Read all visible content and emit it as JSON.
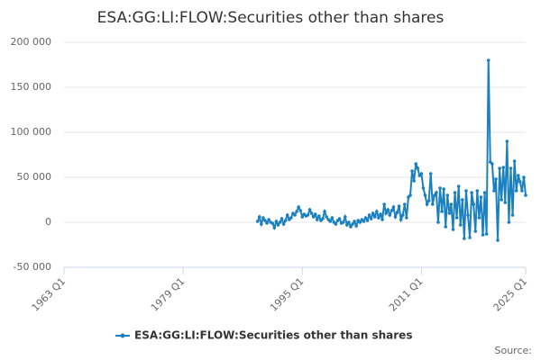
{
  "chart_data": {
    "type": "line",
    "title": "ESA:GG:LI:FLOW:Securities other than shares",
    "x": [
      "1989 Q1",
      "1989 Q2",
      "1989 Q3",
      "1989 Q4",
      "1990 Q1",
      "1990 Q2",
      "1990 Q3",
      "1990 Q4",
      "1991 Q1",
      "1991 Q2",
      "1991 Q3",
      "1991 Q4",
      "1992 Q1",
      "1992 Q2",
      "1992 Q3",
      "1992 Q4",
      "1993 Q1",
      "1993 Q2",
      "1993 Q3",
      "1993 Q4",
      "1994 Q1",
      "1994 Q2",
      "1994 Q3",
      "1994 Q4",
      "1995 Q1",
      "1995 Q2",
      "1995 Q3",
      "1995 Q4",
      "1996 Q1",
      "1996 Q2",
      "1996 Q3",
      "1996 Q4",
      "1997 Q1",
      "1997 Q2",
      "1997 Q3",
      "1997 Q4",
      "1998 Q1",
      "1998 Q2",
      "1998 Q3",
      "1998 Q4",
      "1999 Q1",
      "1999 Q2",
      "1999 Q3",
      "1999 Q4",
      "2000 Q1",
      "2000 Q2",
      "2000 Q3",
      "2000 Q4",
      "2001 Q1",
      "2001 Q2",
      "2001 Q3",
      "2001 Q4",
      "2002 Q1",
      "2002 Q2",
      "2002 Q3",
      "2002 Q4",
      "2003 Q1",
      "2003 Q2",
      "2003 Q3",
      "2003 Q4",
      "2004 Q1",
      "2004 Q2",
      "2004 Q3",
      "2004 Q4",
      "2005 Q1",
      "2005 Q2",
      "2005 Q3",
      "2005 Q4",
      "2006 Q1",
      "2006 Q2",
      "2006 Q3",
      "2006 Q4",
      "2007 Q1",
      "2007 Q2",
      "2007 Q3",
      "2007 Q4",
      "2008 Q1",
      "2008 Q2",
      "2008 Q3",
      "2008 Q4",
      "2009 Q1",
      "2009 Q2",
      "2009 Q3",
      "2009 Q4",
      "2010 Q1",
      "2010 Q2",
      "2010 Q3",
      "2010 Q4",
      "2011 Q1",
      "2011 Q2",
      "2011 Q3",
      "2011 Q4",
      "2012 Q1",
      "2012 Q2",
      "2012 Q3",
      "2012 Q4",
      "2013 Q1",
      "2013 Q2",
      "2013 Q3",
      "2013 Q4",
      "2014 Q1",
      "2014 Q2",
      "2014 Q3",
      "2014 Q4",
      "2015 Q1",
      "2015 Q2",
      "2015 Q3",
      "2015 Q4",
      "2016 Q1",
      "2016 Q2",
      "2016 Q3",
      "2016 Q4",
      "2017 Q1",
      "2017 Q2",
      "2017 Q3",
      "2017 Q4",
      "2018 Q1",
      "2018 Q2",
      "2018 Q3",
      "2018 Q4",
      "2019 Q1",
      "2019 Q2",
      "2019 Q3",
      "2019 Q4",
      "2020 Q1",
      "2020 Q2",
      "2020 Q3",
      "2020 Q4",
      "2021 Q1",
      "2021 Q2",
      "2021 Q3",
      "2021 Q4",
      "2022 Q1",
      "2022 Q2",
      "2022 Q3",
      "2022 Q4",
      "2023 Q1",
      "2023 Q2",
      "2023 Q3",
      "2023 Q4",
      "2024 Q1",
      "2024 Q2",
      "2024 Q3",
      "2024 Q4",
      "2025 Q1"
    ],
    "series": [
      {
        "name": "ESA:GG:LI:FLOW:Securities other than shares",
        "color": "#1a80bf",
        "values": [
          1000,
          6000,
          -2000,
          5000,
          2000,
          -1000,
          3000,
          0,
          -1000,
          -6000,
          1000,
          -3000,
          0,
          4000,
          -2000,
          2000,
          8000,
          3000,
          5000,
          10000,
          8000,
          12000,
          17000,
          13000,
          6000,
          9000,
          7000,
          8000,
          14000,
          10000,
          6000,
          9000,
          3000,
          7000,
          2000,
          4000,
          12000,
          6000,
          3000,
          1000,
          5000,
          0,
          -2000,
          2000,
          4000,
          -1000,
          0,
          6000,
          -3000,
          0,
          -5000,
          -2000,
          1000,
          -4000,
          2000,
          0,
          3000,
          1000,
          5000,
          2000,
          8000,
          4000,
          10000,
          6000,
          12000,
          5000,
          9000,
          3000,
          20000,
          10000,
          14000,
          8000,
          13000,
          17000,
          6000,
          11000,
          18000,
          3000,
          8000,
          20000,
          5000,
          28000,
          30000,
          57000,
          46000,
          65000,
          60000,
          52000,
          54000,
          38000,
          30000,
          20000,
          24000,
          54000,
          20000,
          30000,
          33000,
          0,
          38000,
          12000,
          37000,
          -5000,
          30000,
          10000,
          20000,
          -8000,
          33000,
          5000,
          40000,
          -3000,
          25000,
          -18000,
          35000,
          8000,
          -17000,
          33000,
          20000,
          -10000,
          35000,
          5000,
          28000,
          -14000,
          33000,
          -13000,
          180000,
          67000,
          65000,
          35000,
          48000,
          -20000,
          60000,
          25000,
          61000,
          22000,
          90000,
          0,
          60000,
          8000,
          68000,
          35000,
          52000,
          45000,
          35000,
          50000,
          30000
        ]
      }
    ],
    "xlim": [
      "1963 Q1",
      "2025 Q1"
    ],
    "xticks": [
      "1963 Q1",
      "1979 Q1",
      "1995 Q1",
      "2011 Q1",
      "2025 Q1"
    ],
    "ylim": [
      -50000,
      200000
    ],
    "yticks": [
      {
        "value": -50000,
        "label": "-50 000"
      },
      0,
      {
        "value": 50000,
        "label": "50 000"
      },
      {
        "value": 100000,
        "label": "100 000"
      },
      {
        "value": 150000,
        "label": "150 000"
      },
      {
        "value": 200000,
        "label": "200 000"
      }
    ],
    "grid": true
  },
  "source": "Source:"
}
